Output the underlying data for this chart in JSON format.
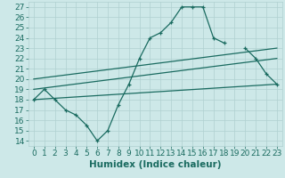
{
  "title": "",
  "xlabel": "Humidex (Indice chaleur)",
  "ylabel": "",
  "bg_color": "#cde8e8",
  "line_color": "#1a6b60",
  "xlim": [
    -0.5,
    23.5
  ],
  "ylim": [
    13.5,
    27.5
  ],
  "xticks": [
    0,
    1,
    2,
    3,
    4,
    5,
    6,
    7,
    8,
    9,
    10,
    11,
    12,
    13,
    14,
    15,
    16,
    17,
    18,
    19,
    20,
    21,
    22,
    23
  ],
  "yticks": [
    14,
    15,
    16,
    17,
    18,
    19,
    20,
    21,
    22,
    23,
    24,
    25,
    26,
    27
  ],
  "series1_x": [
    0,
    1,
    2,
    3,
    4,
    5,
    6,
    7,
    8,
    9,
    10,
    11,
    12,
    13,
    14,
    15,
    16,
    17,
    18,
    19,
    20,
    21,
    22,
    23
  ],
  "series1_y": [
    18.0,
    19.0,
    18.0,
    17.0,
    16.5,
    15.5,
    14.0,
    15.0,
    17.5,
    19.5,
    22.0,
    24.0,
    24.5,
    25.5,
    27.0,
    27.0,
    27.0,
    24.0,
    23.5,
    null,
    23.0,
    22.0,
    20.5,
    19.5
  ],
  "series2_x": [
    0,
    23
  ],
  "series2_y": [
    18.0,
    19.5
  ],
  "series3_x": [
    0,
    23
  ],
  "series3_y": [
    19.0,
    22.0
  ],
  "series4_x": [
    0,
    23
  ],
  "series4_y": [
    20.0,
    23.0
  ],
  "grid_color": "#b0d0d0",
  "tick_fontsize": 6.5,
  "xlabel_fontsize": 7.5
}
